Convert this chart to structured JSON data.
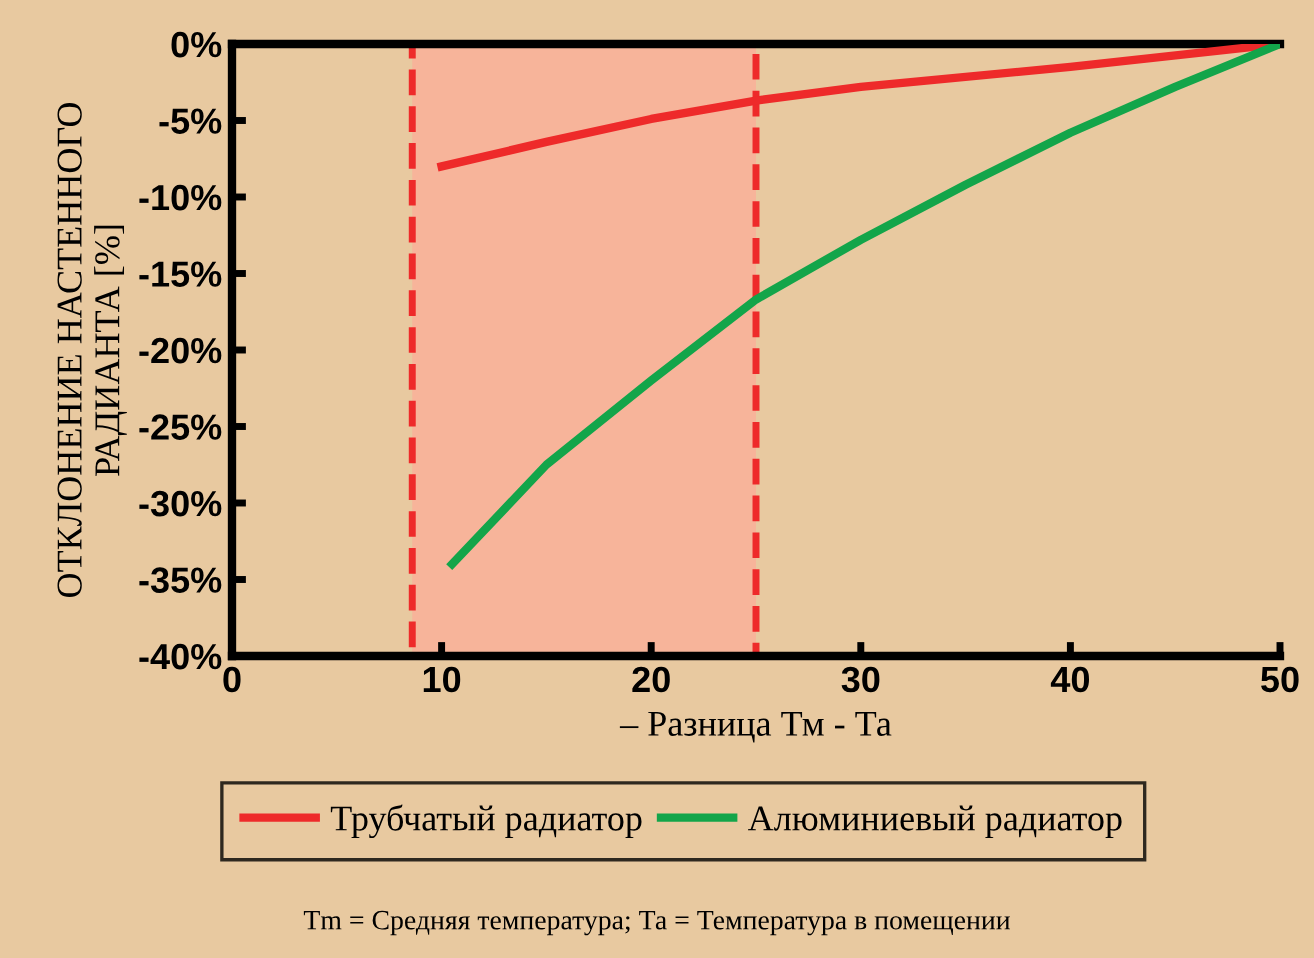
{
  "chart_data": {
    "type": "line",
    "xlabel": "– Разница Тм - Та",
    "ylabel": "ОТКЛОНЕНИЕ НАСТЕННОГО\nРАДИАНТА [%]",
    "xlim": [
      0,
      50
    ],
    "xticks": [
      0,
      10,
      20,
      30,
      40,
      50
    ],
    "ylim": [
      -40,
      0
    ],
    "yticks": [
      {
        "value": 0,
        "label": "0%"
      },
      {
        "value": -5,
        "label": "-5%"
      },
      {
        "value": -10,
        "label": "-10%"
      },
      {
        "value": -15,
        "label": "-15%"
      },
      {
        "value": -20,
        "label": "-20%"
      },
      {
        "value": -25,
        "label": "-25%"
      },
      {
        "value": -30,
        "label": "-30%"
      },
      {
        "value": -35,
        "label": "-35%"
      },
      {
        "value": -40,
        "label": "-40%"
      }
    ],
    "series": [
      {
        "name": "Трубчатый радиатор",
        "color": "#ee2a2a",
        "x": [
          10,
          15,
          20,
          25,
          30,
          40,
          50
        ],
        "values": [
          -8,
          -6.4,
          -4.9,
          -3.7,
          -2.8,
          -1.5,
          0
        ]
      },
      {
        "name": "Алюминиевый радиатор",
        "color": "#13a54a",
        "x": [
          10.5,
          15,
          20,
          25,
          30,
          35,
          40,
          45,
          50
        ],
        "values": [
          -34,
          -27.5,
          -22,
          -16.7,
          -12.8,
          -9.2,
          -5.8,
          -2.8,
          0
        ]
      }
    ],
    "bands": [
      {
        "axis": "x",
        "from": 8.6,
        "to": 25,
        "color": "#f7b49a"
      }
    ],
    "grid": false,
    "legend": "bottom",
    "marker": "none",
    "line_style": "solid",
    "annotations": [
      "Тm = Средняя температура; Та = Температура в помещении"
    ]
  }
}
